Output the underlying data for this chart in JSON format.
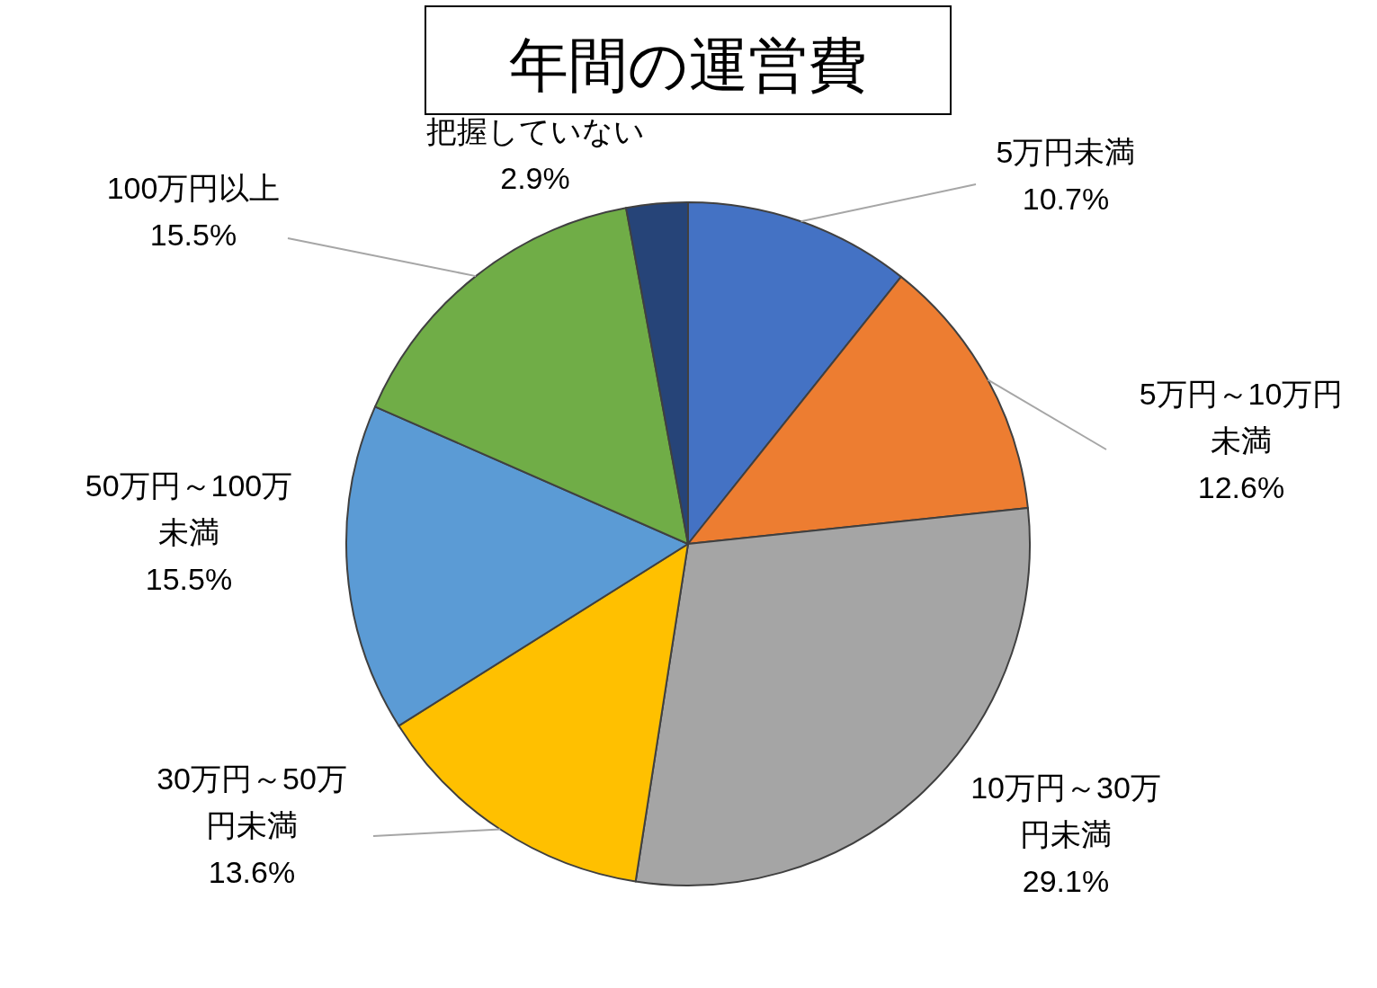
{
  "chart_data": {
    "type": "pie",
    "title": "年間の運営費",
    "categories": [
      "5万円未満",
      "5万円～10万円未満",
      "10万円～30万円未満",
      "30万円～50万円未満",
      "50万円～100万未満",
      "100万円以上",
      "把握していない"
    ],
    "values": [
      10.7,
      12.6,
      29.1,
      13.6,
      15.5,
      15.5,
      2.9
    ],
    "colors": [
      "#4472c4",
      "#ed7d31",
      "#a5a5a5",
      "#ffc000",
      "#5b9bd5",
      "#70ad47",
      "#264478"
    ],
    "value_labels": [
      "10.7%",
      "12.6%",
      "29.1%",
      "13.6%",
      "15.5%",
      "15.5%",
      "2.9%"
    ]
  }
}
